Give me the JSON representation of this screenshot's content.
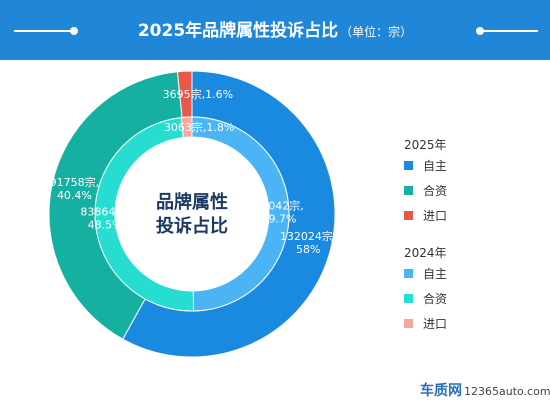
{
  "header": {
    "title": "2025年品牌属性投诉占比",
    "unit": "（单位：宗）"
  },
  "colors": {
    "header_bg": "#1f86d8",
    "outer_zizhu": "#1a8ae0",
    "outer_hezi": "#16b0a1",
    "outer_jinkou": "#e8574a",
    "inner_zizhu": "#4ab4f4",
    "inner_hezi": "#27ddd2",
    "inner_jinkou": "#f4a79b"
  },
  "chart_data": {
    "type": "pie",
    "center_label": [
      "品牌属性",
      "投诉占比"
    ],
    "series": [
      {
        "name": "2025年",
        "ring": "outer",
        "categories": [
          "自主",
          "合资",
          "进口"
        ],
        "values": [
          132024,
          91758,
          3695
        ],
        "percents": [
          "58%",
          "40.4%",
          "1.6%"
        ],
        "data_labels": [
          "132024宗,\n58%",
          "91758宗,\n40.4%",
          "3695宗,1.6%"
        ]
      },
      {
        "name": "2024年",
        "ring": "inner",
        "categories": [
          "自主",
          "合资",
          "进口"
        ],
        "values": [
          86042,
          83864,
          3063
        ],
        "percents": [
          "49.7%",
          "48.5%",
          "1.8%"
        ],
        "data_labels": [
          "86042宗,\n49.7%",
          "83864宗,\n48.5%",
          "3063宗,1.8%"
        ]
      }
    ],
    "legend": {
      "placement": "right",
      "groups": [
        {
          "title": "2025年",
          "items": [
            "自主",
            "合资",
            "进口"
          ]
        },
        {
          "title": "2024年",
          "items": [
            "自主",
            "合资",
            "进口"
          ]
        }
      ]
    }
  },
  "watermark": {
    "brand": "车质网",
    "url": "12365auto.com"
  }
}
